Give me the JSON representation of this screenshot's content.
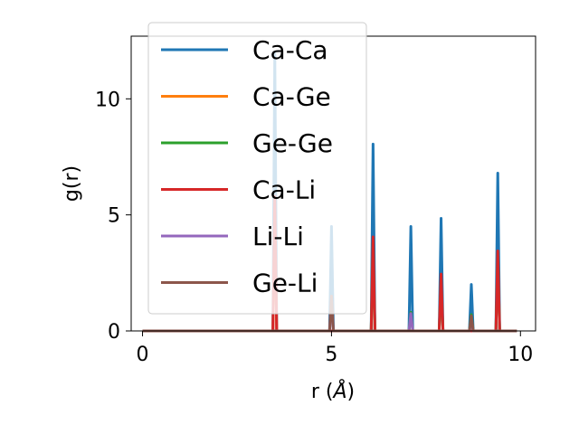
{
  "chart_data": {
    "type": "line",
    "xlabel": "r (",
    "xlabel_unit": "Å",
    "xlabel_close": ")",
    "ylabel": "g(r)",
    "xlim": [
      -0.3,
      10.4
    ],
    "ylim": [
      0,
      12.7
    ],
    "x_ticks": [
      0,
      5,
      10
    ],
    "x_tick_labels": [
      "0",
      "5",
      "10"
    ],
    "y_ticks": [
      0,
      5,
      10
    ],
    "y_tick_labels": [
      "0",
      "5",
      "10"
    ],
    "grid": false,
    "legend_placement": "upper-left",
    "x_range": [
      0,
      9.9
    ],
    "series": [
      {
        "name": "Ca-Ca",
        "color": "#1f77b4",
        "peaks": [
          [
            3.5,
            12.0
          ],
          [
            5.0,
            4.5
          ],
          [
            6.1,
            8.05
          ],
          [
            7.1,
            4.5
          ],
          [
            7.9,
            4.85
          ],
          [
            8.7,
            2.0
          ],
          [
            9.4,
            6.8
          ]
        ]
      },
      {
        "name": "Ca-Ge",
        "color": "#ff7f0e",
        "peaks": [
          [
            3.5,
            5.0
          ]
        ]
      },
      {
        "name": "Ge-Ge",
        "color": "#2ca02c",
        "peaks": [
          [
            6.1,
            3.8
          ],
          [
            7.1,
            0.8
          ],
          [
            7.9,
            2.2
          ],
          [
            8.7,
            0.7
          ],
          [
            9.4,
            3.2
          ]
        ]
      },
      {
        "name": "Ca-Li",
        "color": "#d62728",
        "peaks": [
          [
            3.5,
            5.8
          ],
          [
            6.1,
            4.05
          ],
          [
            7.9,
            2.45
          ],
          [
            9.4,
            3.45
          ]
        ]
      },
      {
        "name": "Li-Li",
        "color": "#9467bd",
        "peaks": [
          [
            5.0,
            1.4
          ],
          [
            7.1,
            0.75
          ],
          [
            8.7,
            0.5
          ]
        ]
      },
      {
        "name": "Ge-Li",
        "color": "#8c564b",
        "peaks": [
          [
            5.0,
            1.5
          ],
          [
            8.7,
            0.65
          ]
        ]
      }
    ]
  }
}
